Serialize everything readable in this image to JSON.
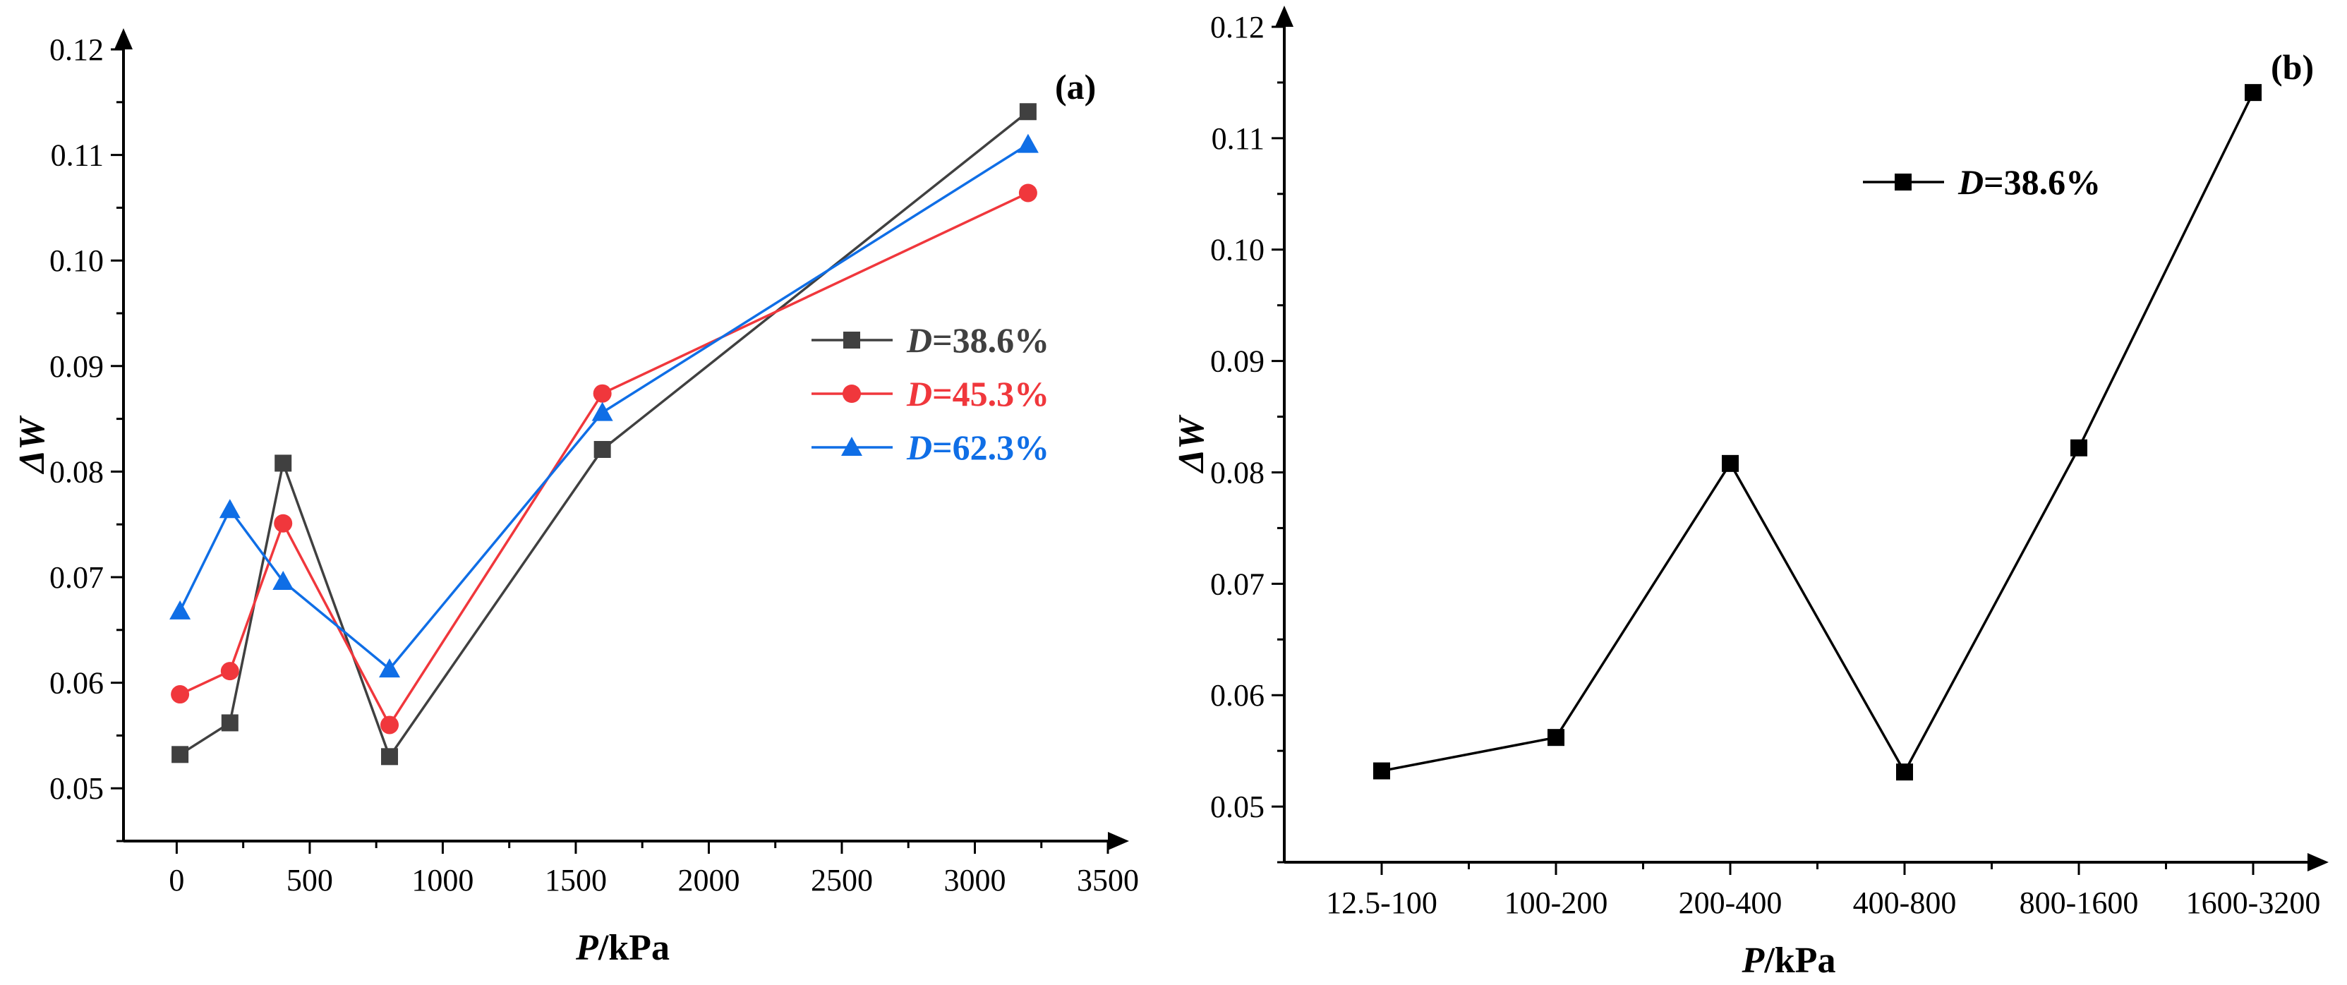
{
  "chart_data": [
    {
      "panel_label": "(a)",
      "type": "line",
      "xlabel_italic": "P",
      "xlabel_rest": "/kPa",
      "ylabel": "ΔW",
      "xlim": [
        -200,
        3500
      ],
      "ylim": [
        0.045,
        0.12
      ],
      "xticks": [
        0,
        500,
        1000,
        1500,
        2000,
        2500,
        3000,
        3500
      ],
      "xtick_labels": [
        "0",
        "500",
        "1000",
        "1500",
        "2000",
        "2500",
        "3000",
        "3500"
      ],
      "yticks": [
        0.05,
        0.06,
        0.07,
        0.08,
        0.09,
        0.1,
        0.11,
        0.12
      ],
      "ytick_labels": [
        "0.05",
        "0.06",
        "0.07",
        "0.08",
        "0.09",
        "0.10",
        "0.11",
        "0.12"
      ],
      "x": [
        12.5,
        200,
        400,
        800,
        1600,
        3200
      ],
      "legend_position": "center-right",
      "series": [
        {
          "name_italic": "D",
          "name_rest": "=38.6%",
          "color": "#404040",
          "marker": "square",
          "values": [
            0.0532,
            0.0562,
            0.0808,
            0.053,
            0.0821,
            0.1141
          ]
        },
        {
          "name_italic": "D",
          "name_rest": "=45.3%",
          "color": "#f0373c",
          "marker": "circle",
          "values": [
            0.0589,
            0.0611,
            0.0751,
            0.056,
            0.0874,
            0.1064
          ]
        },
        {
          "name_italic": "D",
          "name_rest": "=62.3%",
          "color": "#0f6ee6",
          "marker": "triangle",
          "values": [
            0.0668,
            0.0764,
            0.0696,
            0.0613,
            0.0856,
            0.111
          ]
        }
      ]
    },
    {
      "panel_label": "(b)",
      "type": "line",
      "xlabel_italic": "P",
      "xlabel_rest": "/kPa",
      "ylabel": "ΔW",
      "ylim": [
        0.045,
        0.12
      ],
      "categories": [
        "12.5-100",
        "100-200",
        "200-400",
        "400-800",
        "800-1600",
        "1600-3200"
      ],
      "yticks": [
        0.05,
        0.06,
        0.07,
        0.08,
        0.09,
        0.1,
        0.11,
        0.12
      ],
      "ytick_labels": [
        "0.05",
        "0.06",
        "0.07",
        "0.08",
        "0.09",
        "0.10",
        "0.11",
        "0.12"
      ],
      "legend_position": "top-right",
      "series": [
        {
          "name_italic": "D",
          "name_rest": "=38.6%",
          "color": "#000000",
          "marker": "square",
          "values": [
            0.0532,
            0.0562,
            0.0808,
            0.0531,
            0.0822,
            0.1141
          ]
        }
      ]
    }
  ]
}
